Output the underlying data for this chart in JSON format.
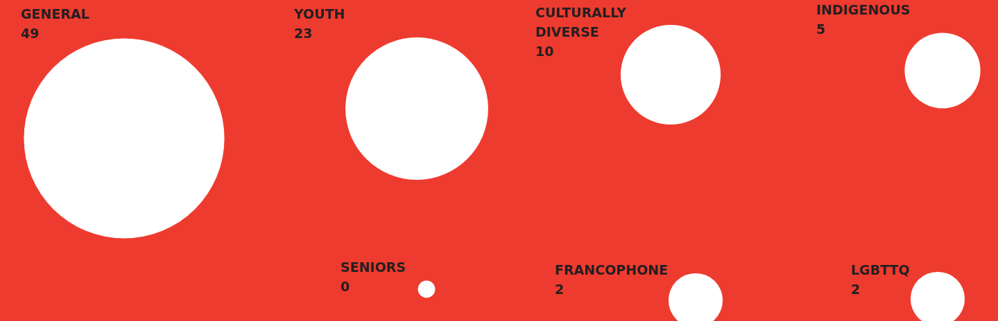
{
  "chart_data": {
    "type": "other",
    "categories": [
      "GENERAL",
      "YOUTH",
      "CULTURALLY DIVERSE",
      "INDIGENOUS",
      "SENIORS",
      "FRANCOPHONE",
      "LGBTTQ"
    ],
    "values": [
      49,
      23,
      10,
      5,
      0,
      2,
      2
    ],
    "color": "#ffffff",
    "data_labels": true
  }
}
